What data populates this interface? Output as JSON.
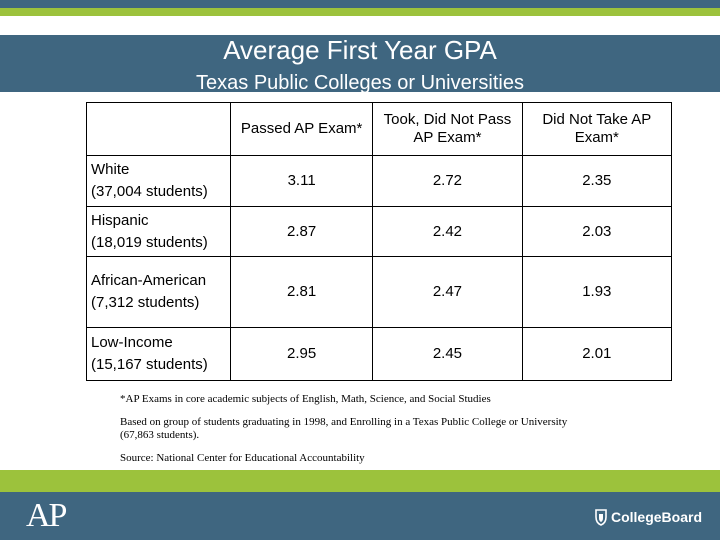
{
  "header": {
    "title": "Average First Year GPA",
    "subtitle": "Texas Public Colleges or Universities"
  },
  "table": {
    "columns": [
      "",
      "Passed AP Exam*",
      "Took, Did Not Pass AP Exam*",
      "Did Not Take AP Exam*"
    ],
    "rows": [
      {
        "group": "White",
        "count": "(37,004 students)",
        "values": [
          "3.11",
          "2.72",
          "2.35"
        ]
      },
      {
        "group": "Hispanic",
        "count": "(18,019 students)",
        "values": [
          "2.87",
          "2.42",
          "2.03"
        ]
      },
      {
        "group": "African-American",
        "count": "(7,312 students)",
        "values": [
          "2.81",
          "2.47",
          "1.93"
        ]
      },
      {
        "group": "Low-Income",
        "count": "(15,167 students)",
        "values": [
          "2.95",
          "2.45",
          "2.01"
        ]
      }
    ]
  },
  "notes": [
    "*AP Exams in core academic subjects of English, Math, Science, and Social Studies",
    "Based on group of students graduating in 1998, and Enrolling in a Texas Public College or University (67,863 students).",
    "Source: National Center for Educational Accountability"
  ],
  "footer": {
    "ap_logo": "AP",
    "brand_logo": "CollegeBoard"
  },
  "colors": {
    "band": "#3f6680",
    "accent": "#9cc23c"
  }
}
